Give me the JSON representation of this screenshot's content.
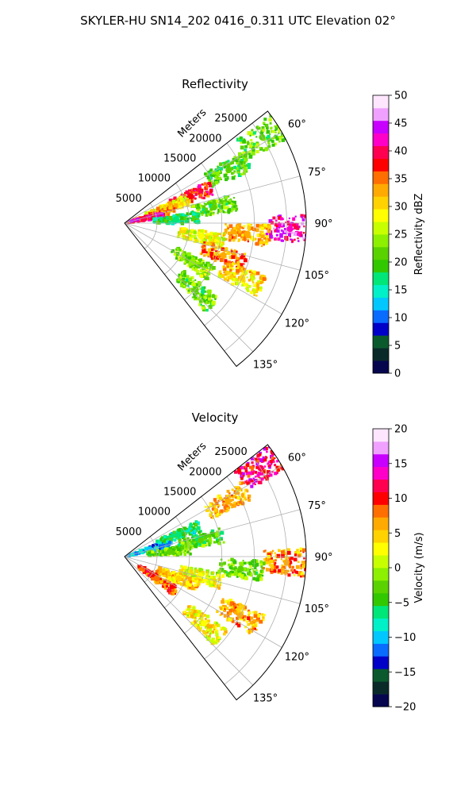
{
  "figure": {
    "title": "SKYLER-HU  SN14_202  0416_0.311 UTC Elevation 02°"
  },
  "chart_data": [
    {
      "type": "heatmap",
      "subtype": "polar-sector",
      "title": "Reflectivity",
      "range_axis_label": "Meters",
      "range_ticks": [
        5000,
        10000,
        15000,
        20000,
        25000
      ],
      "range_tick_labels": [
        "5000",
        "10000",
        "15000",
        "20000",
        "25000"
      ],
      "azimuth_ticks": [
        60,
        75,
        90,
        105,
        120,
        135
      ],
      "azimuth_tick_labels": [
        "60°",
        "75°",
        "90°",
        "105°",
        "120°",
        "135°"
      ],
      "azimuth_range": [
        52,
        142
      ],
      "max_range_m": 28000,
      "grid": true,
      "colorbar": {
        "label": "Reflectivity dBZ",
        "min": 0,
        "max": 50,
        "ticks": [
          0,
          5,
          10,
          15,
          20,
          25,
          30,
          35,
          40,
          45,
          50
        ],
        "tick_labels": [
          "0",
          "5",
          "10",
          "15",
          "20",
          "25",
          "30",
          "35",
          "40",
          "45",
          "50"
        ],
        "colormap": [
          "#06064f",
          "#0a2a2a",
          "#0b5a2e",
          "#0000c8",
          "#0a6cff",
          "#00c8ff",
          "#00f0c8",
          "#00e678",
          "#32c800",
          "#5ad200",
          "#8cf000",
          "#c8ff00",
          "#ffff00",
          "#ffd200",
          "#ffaa00",
          "#ff6e00",
          "#ff0000",
          "#ff0050",
          "#ff00c8",
          "#c800ff",
          "#f0a0ff",
          "#ffe6ff"
        ]
      },
      "echoes": [
        {
          "azimuth": 58,
          "range_m": 25000,
          "value": 22
        },
        {
          "azimuth": 63,
          "range_m": 18000,
          "value": 21
        },
        {
          "azimuth": 68,
          "range_m": 11000,
          "value": 38
        },
        {
          "azimuth": 70,
          "range_m": 7000,
          "value": 30
        },
        {
          "azimuth": 75,
          "range_m": 5000,
          "value": 34
        },
        {
          "azimuth": 78,
          "range_m": 3000,
          "value": 40
        },
        {
          "azimuth": 80,
          "range_m": 14000,
          "value": 22
        },
        {
          "azimuth": 86,
          "range_m": 8000,
          "value": 18
        },
        {
          "azimuth": 92,
          "range_m": 25500,
          "value": 42
        },
        {
          "azimuth": 95,
          "range_m": 19000,
          "value": 32
        },
        {
          "azimuth": 100,
          "range_m": 12000,
          "value": 28
        },
        {
          "azimuth": 108,
          "range_m": 16000,
          "value": 34
        },
        {
          "azimuth": 115,
          "range_m": 20000,
          "value": 30
        },
        {
          "azimuth": 120,
          "range_m": 12000,
          "value": 24
        },
        {
          "azimuth": 133,
          "range_m": 15000,
          "value": 22
        }
      ]
    },
    {
      "type": "heatmap",
      "subtype": "polar-sector",
      "title": "Velocity",
      "range_axis_label": "Meters",
      "range_ticks": [
        5000,
        10000,
        15000,
        20000,
        25000
      ],
      "range_tick_labels": [
        "5000",
        "10000",
        "15000",
        "20000",
        "25000"
      ],
      "azimuth_ticks": [
        60,
        75,
        90,
        105,
        120,
        135
      ],
      "azimuth_tick_labels": [
        "60°",
        "75°",
        "90°",
        "105°",
        "120°",
        "135°"
      ],
      "azimuth_range": [
        52,
        142
      ],
      "max_range_m": 28000,
      "grid": true,
      "colorbar": {
        "label": "Velocity (m/s)",
        "min": -20,
        "max": 20,
        "ticks": [
          -20,
          -15,
          -10,
          -5,
          0,
          5,
          10,
          15,
          20
        ],
        "tick_labels": [
          "−20",
          "−15",
          "−10",
          "−5",
          "0",
          "5",
          "10",
          "15",
          "20"
        ],
        "colormap": [
          "#06064f",
          "#0a2a2a",
          "#0b5a2e",
          "#0000c8",
          "#0a6cff",
          "#00c8ff",
          "#00f0c8",
          "#00e678",
          "#32c800",
          "#5ad200",
          "#8cf000",
          "#c8ff00",
          "#ffff00",
          "#ffd200",
          "#ffaa00",
          "#ff6e00",
          "#ff0000",
          "#ff0050",
          "#ff00c8",
          "#c800ff",
          "#f0a0ff",
          "#ffe6ff"
        ]
      },
      "echoes": [
        {
          "azimuth": 57,
          "range_m": 25000,
          "value": 12
        },
        {
          "azimuth": 62,
          "range_m": 18000,
          "value": 6
        },
        {
          "azimuth": 68,
          "range_m": 9000,
          "value": -6
        },
        {
          "azimuth": 74,
          "range_m": 4000,
          "value": -10
        },
        {
          "azimuth": 78,
          "range_m": 12000,
          "value": -3
        },
        {
          "azimuth": 84,
          "range_m": 7000,
          "value": -2
        },
        {
          "azimuth": 92,
          "range_m": 25000,
          "value": 7
        },
        {
          "azimuth": 96,
          "range_m": 18000,
          "value": -2
        },
        {
          "azimuth": 104,
          "range_m": 12000,
          "value": 2
        },
        {
          "azimuth": 112,
          "range_m": 9000,
          "value": 5
        },
        {
          "azimuth": 117,
          "range_m": 20000,
          "value": 6
        },
        {
          "azimuth": 124,
          "range_m": 6000,
          "value": 8
        },
        {
          "azimuth": 130,
          "range_m": 16000,
          "value": 3
        }
      ]
    }
  ]
}
